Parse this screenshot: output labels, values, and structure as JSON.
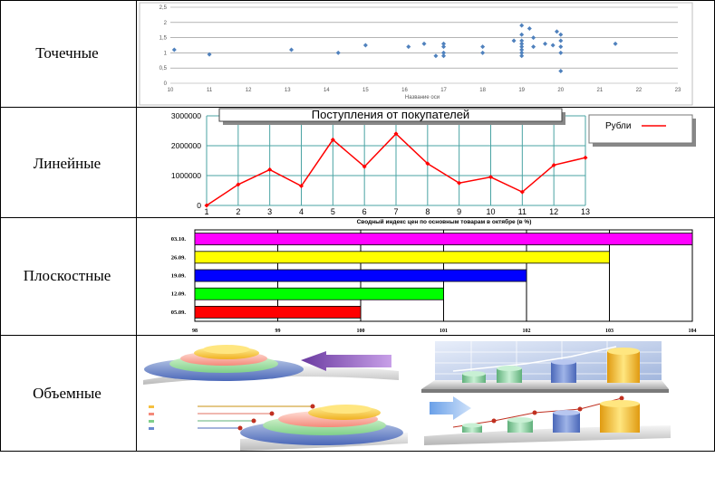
{
  "rows": [
    {
      "label": "Точечные"
    },
    {
      "label": "Линейные"
    },
    {
      "label": "Плоскостные"
    },
    {
      "label": "Объемные"
    }
  ],
  "colors": {
    "scatter": "#4f81bd",
    "line": "#ff0000",
    "grid_teal": "#4aa3a3"
  },
  "chart_data": [
    {
      "type": "scatter",
      "title": "",
      "xlabel": "Название оси",
      "ylabel": "",
      "xlim": [
        10,
        23
      ],
      "ylim": [
        0,
        2.5
      ],
      "x_ticks": [
        "10",
        "11",
        "12",
        "13",
        "14",
        "15",
        "16",
        "17",
        "18",
        "19",
        "20",
        "21",
        "22",
        "23"
      ],
      "y_ticks": [
        "0",
        "0,5",
        "1",
        "1,5",
        "2",
        "2,5"
      ],
      "points": [
        [
          10.1,
          1.1
        ],
        [
          11,
          0.95
        ],
        [
          13.1,
          1.1
        ],
        [
          14.3,
          1
        ],
        [
          15,
          1.25
        ],
        [
          16.1,
          1.2
        ],
        [
          16.5,
          1.3
        ],
        [
          16.8,
          0.9
        ],
        [
          17,
          1.3
        ],
        [
          17,
          1.2
        ],
        [
          17,
          1
        ],
        [
          17,
          0.9
        ],
        [
          18,
          1.2
        ],
        [
          18,
          1
        ],
        [
          18.8,
          1.4
        ],
        [
          19,
          1.9
        ],
        [
          19,
          1.6
        ],
        [
          19,
          1.4
        ],
        [
          19,
          1.3
        ],
        [
          19,
          1.2
        ],
        [
          19,
          1.1
        ],
        [
          19,
          1
        ],
        [
          19,
          0.9
        ],
        [
          19.2,
          1.8
        ],
        [
          19.3,
          1.5
        ],
        [
          19.3,
          1.2
        ],
        [
          19.6,
          1.3
        ],
        [
          19.8,
          1.25
        ],
        [
          19.9,
          1.7
        ],
        [
          20,
          1.6
        ],
        [
          20,
          1.4
        ],
        [
          20,
          1.2
        ],
        [
          20,
          1
        ],
        [
          20,
          0.4
        ],
        [
          21.4,
          1.3
        ]
      ]
    },
    {
      "type": "line",
      "title": "Поступления от покупателей",
      "legend": "top-right",
      "x": [
        "1",
        "2",
        "3",
        "4",
        "5",
        "6",
        "7",
        "8",
        "9",
        "10",
        "11",
        "12",
        "13"
      ],
      "y_ticks": [
        "0",
        "1000000",
        "2000000",
        "3000000"
      ],
      "ylim": [
        0,
        3000000
      ],
      "series": [
        {
          "name": "Рубли",
          "values": [
            0,
            700000,
            1200000,
            650000,
            2200000,
            1300000,
            2400000,
            1400000,
            750000,
            950000,
            450000,
            1350000,
            1600000
          ]
        }
      ]
    },
    {
      "type": "bar",
      "title": "Сводный индекс цен по основным товарам в октябре (в %)",
      "categories": [
        "03.10.",
        "26.09.",
        "19.09.",
        "12.09.",
        "05.09."
      ],
      "values": [
        104,
        103,
        102,
        101,
        100
      ],
      "colors": [
        "#ff00ff",
        "#ffff00",
        "#0000ff",
        "#00ff00",
        "#ff0000"
      ],
      "x_ticks": [
        "98",
        "99",
        "100",
        "101",
        "102",
        "103",
        "104"
      ],
      "xlim": [
        98,
        104
      ]
    }
  ]
}
